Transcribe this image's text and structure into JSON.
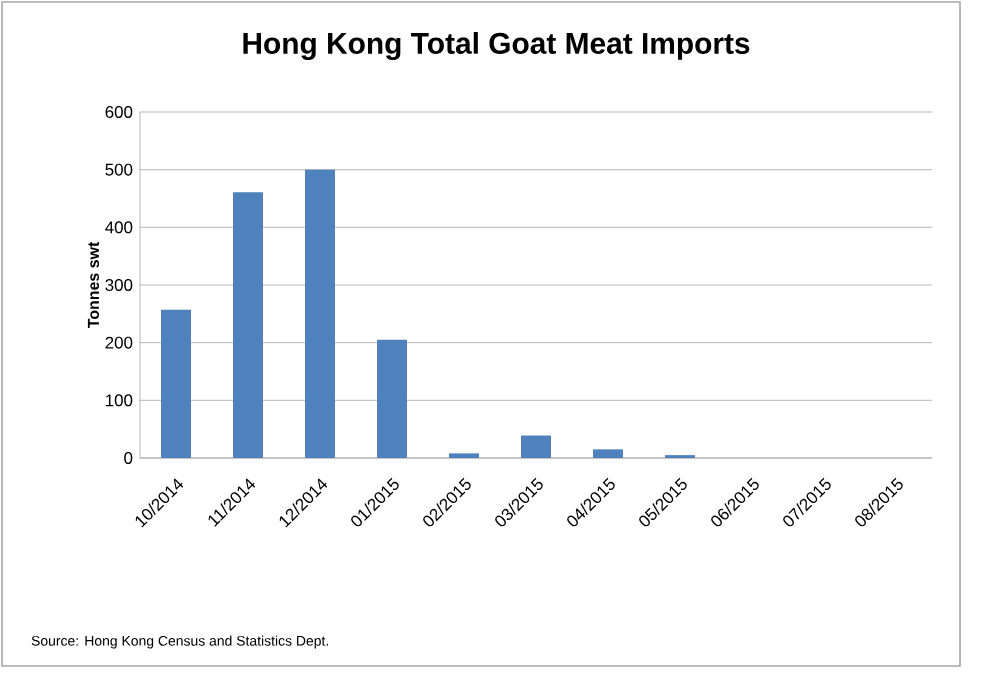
{
  "chart_data": {
    "type": "bar",
    "title": "Hong Kong Total Goat Meat Imports",
    "ylabel": "Tonnes swt",
    "categories": [
      "10/2014",
      "11/2014",
      "12/2014",
      "01/2015",
      "02/2015",
      "03/2015",
      "04/2015",
      "05/2015",
      "06/2015",
      "07/2015",
      "08/2015"
    ],
    "values": [
      257,
      461,
      500,
      205,
      8,
      39,
      15,
      5,
      0,
      0,
      0
    ],
    "color": "#4f81bd",
    "ylim": [
      0,
      600
    ],
    "yticks": [
      0,
      100,
      200,
      300,
      400,
      500,
      600
    ],
    "grid": "y",
    "annotations": [
      "Source: Hong Kong Census and Statistics Dept."
    ]
  }
}
